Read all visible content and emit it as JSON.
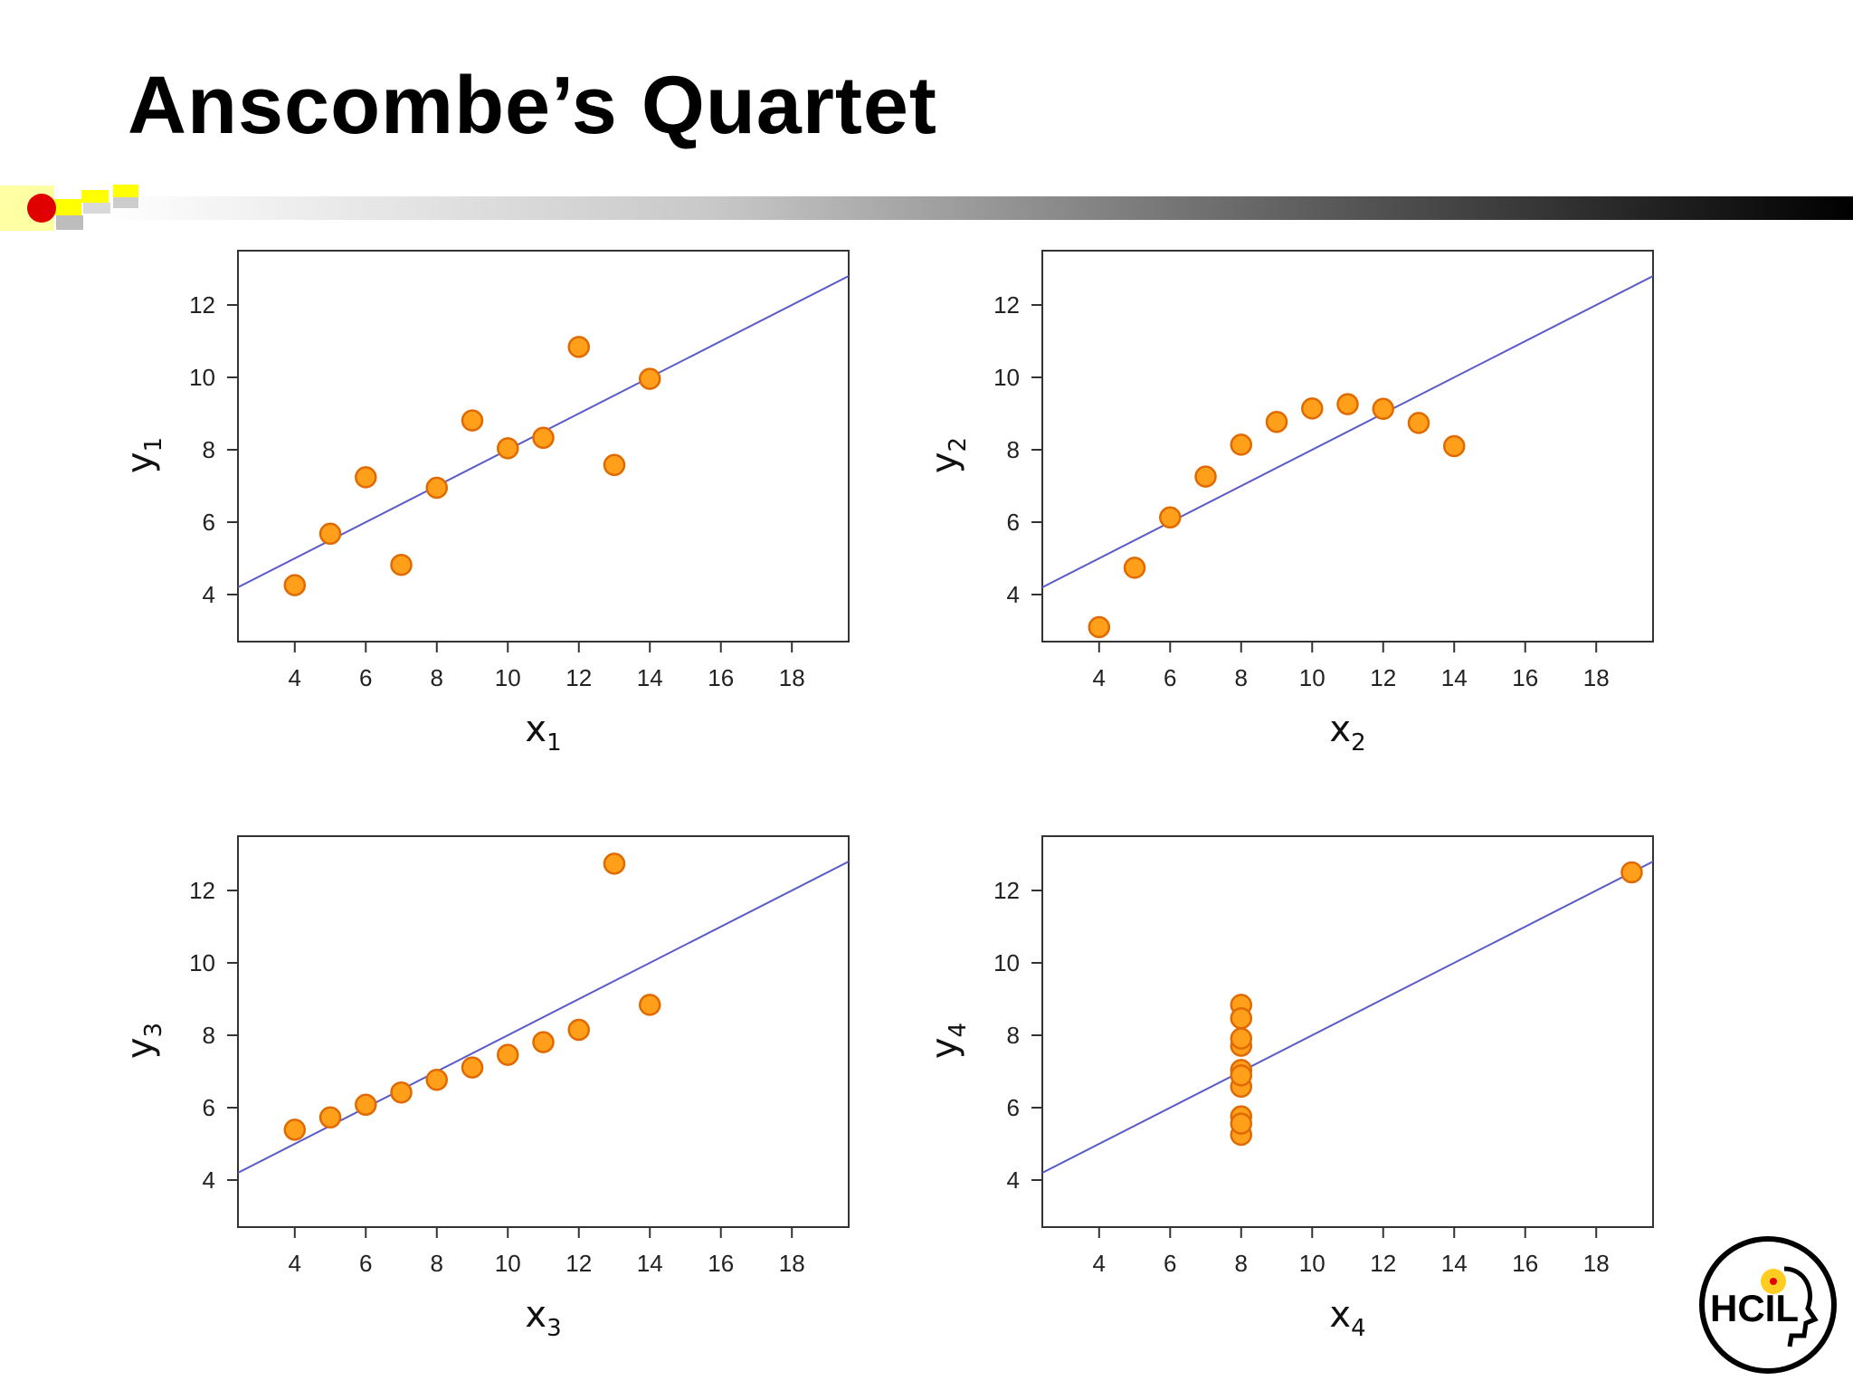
{
  "slide": {
    "title": "Anscombe’s Quartet"
  },
  "logo": {
    "text": "HCIL"
  },
  "colors": {
    "point_fill": "#FF9F1A",
    "point_stroke": "#E06A00",
    "fit_line": "#5A5AC8",
    "frame": "#333333",
    "bullet_red": "#E00000",
    "bullet_yellow": "#FFFF00"
  },
  "chart_data": [
    {
      "type": "scatter",
      "x_symbol": "x",
      "x_sub": "1",
      "y_symbol": "y",
      "y_sub": "1",
      "xlim": [
        2.4,
        19.6
      ],
      "ylim": [
        2.7,
        13.5
      ],
      "x_ticks": [
        4,
        6,
        8,
        10,
        12,
        14,
        16,
        18
      ],
      "y_ticks": [
        4,
        6,
        8,
        10,
        12
      ],
      "fit_line": {
        "intercept": 3.0,
        "slope": 0.5
      },
      "points": [
        [
          10,
          8.04
        ],
        [
          8,
          6.95
        ],
        [
          13,
          7.58
        ],
        [
          9,
          8.81
        ],
        [
          11,
          8.33
        ],
        [
          14,
          9.96
        ],
        [
          6,
          7.24
        ],
        [
          4,
          4.26
        ],
        [
          12,
          10.84
        ],
        [
          7,
          4.82
        ],
        [
          5,
          5.68
        ]
      ]
    },
    {
      "type": "scatter",
      "x_symbol": "x",
      "x_sub": "2",
      "y_symbol": "y",
      "y_sub": "2",
      "xlim": [
        2.4,
        19.6
      ],
      "ylim": [
        2.7,
        13.5
      ],
      "x_ticks": [
        4,
        6,
        8,
        10,
        12,
        14,
        16,
        18
      ],
      "y_ticks": [
        4,
        6,
        8,
        10,
        12
      ],
      "fit_line": {
        "intercept": 3.0,
        "slope": 0.5
      },
      "points": [
        [
          10,
          9.14
        ],
        [
          8,
          8.14
        ],
        [
          13,
          8.74
        ],
        [
          9,
          8.77
        ],
        [
          11,
          9.26
        ],
        [
          14,
          8.1
        ],
        [
          6,
          6.13
        ],
        [
          4,
          3.1
        ],
        [
          12,
          9.13
        ],
        [
          7,
          7.26
        ],
        [
          5,
          4.74
        ]
      ]
    },
    {
      "type": "scatter",
      "x_symbol": "x",
      "x_sub": "3",
      "y_symbol": "y",
      "y_sub": "3",
      "xlim": [
        2.4,
        19.6
      ],
      "ylim": [
        2.7,
        13.5
      ],
      "x_ticks": [
        4,
        6,
        8,
        10,
        12,
        14,
        16,
        18
      ],
      "y_ticks": [
        4,
        6,
        8,
        10,
        12
      ],
      "fit_line": {
        "intercept": 3.0,
        "slope": 0.5
      },
      "points": [
        [
          10,
          7.46
        ],
        [
          8,
          6.77
        ],
        [
          13,
          12.74
        ],
        [
          9,
          7.11
        ],
        [
          11,
          7.81
        ],
        [
          14,
          8.84
        ],
        [
          6,
          6.08
        ],
        [
          4,
          5.39
        ],
        [
          12,
          8.15
        ],
        [
          7,
          6.42
        ],
        [
          5,
          5.73
        ]
      ]
    },
    {
      "type": "scatter",
      "x_symbol": "x",
      "x_sub": "4",
      "y_symbol": "y",
      "y_sub": "4",
      "xlim": [
        2.4,
        19.6
      ],
      "ylim": [
        2.7,
        13.5
      ],
      "x_ticks": [
        4,
        6,
        8,
        10,
        12,
        14,
        16,
        18
      ],
      "y_ticks": [
        4,
        6,
        8,
        10,
        12
      ],
      "fit_line": {
        "intercept": 3.0,
        "slope": 0.5
      },
      "points": [
        [
          8,
          6.58
        ],
        [
          8,
          5.76
        ],
        [
          8,
          7.71
        ],
        [
          8,
          8.84
        ],
        [
          8,
          8.47
        ],
        [
          8,
          7.04
        ],
        [
          8,
          5.25
        ],
        [
          19,
          12.5
        ],
        [
          8,
          5.56
        ],
        [
          8,
          7.91
        ],
        [
          8,
          6.89
        ]
      ]
    }
  ]
}
